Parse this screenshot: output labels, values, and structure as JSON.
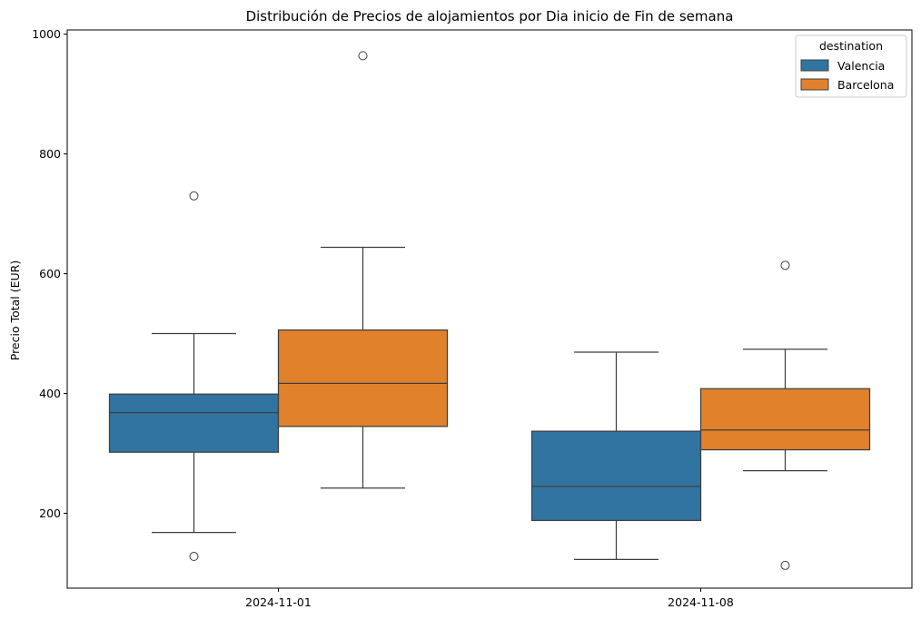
{
  "chart_data": {
    "type": "boxplot",
    "title": "Distribución de Precios de alojamientos por Dia inicio de Fin de semana",
    "xlabel": "",
    "ylabel": "Precio Total (EUR)",
    "categories": [
      "2024-11-01",
      "2024-11-08"
    ],
    "ylim": [
      75,
      1007
    ],
    "yticks": [
      200,
      400,
      600,
      800,
      1000
    ],
    "grid": false,
    "legend": {
      "title": "destination",
      "placement": "top-right",
      "entries": [
        "Valencia",
        "Barcelona"
      ]
    },
    "series": [
      {
        "name": "Valencia",
        "color": "#3274a1",
        "boxes": [
          {
            "category": "2024-11-01",
            "whisker_low": 168,
            "q1": 302,
            "median": 368,
            "q3": 399,
            "whisker_high": 500,
            "outliers": [
              128,
              730
            ]
          },
          {
            "category": "2024-11-08",
            "whisker_low": 123,
            "q1": 188,
            "median": 245,
            "q3": 337,
            "whisker_high": 469,
            "outliers": []
          }
        ]
      },
      {
        "name": "Barcelona",
        "color": "#e1812c",
        "boxes": [
          {
            "category": "2024-11-01",
            "whisker_low": 242,
            "q1": 345,
            "median": 417,
            "q3": 506,
            "whisker_high": 644,
            "outliers": [
              964
            ]
          },
          {
            "category": "2024-11-08",
            "whisker_low": 271,
            "q1": 306,
            "median": 339,
            "q3": 408,
            "whisker_high": 474,
            "outliers": [
              113,
              614
            ]
          }
        ]
      }
    ]
  }
}
